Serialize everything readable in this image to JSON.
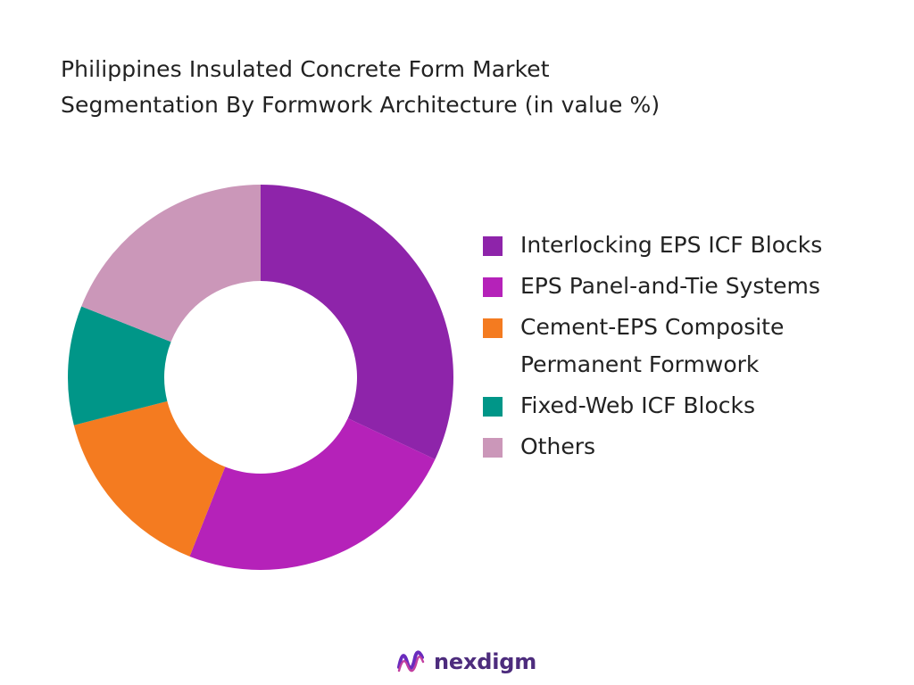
{
  "title": {
    "line1": "Philippines Insulated Concrete Form Market",
    "line2": "Segmentation By Formwork Architecture (in value %)"
  },
  "chart_data": {
    "type": "pie",
    "donut": true,
    "categories": [
      "Interlocking EPS ICF Blocks",
      "EPS Panel-and-Tie Systems",
      "Cement-EPS Composite Permanent Formwork",
      "Fixed-Web ICF Blocks",
      "Others"
    ],
    "legend_lines": [
      [
        "Interlocking EPS ICF Blocks"
      ],
      [
        "EPS Panel-and-Tie Systems"
      ],
      [
        "Cement-EPS Composite",
        "Permanent Formwork"
      ],
      [
        "Fixed-Web ICF Blocks"
      ],
      [
        "Others"
      ]
    ],
    "values": [
      32,
      24,
      15,
      10,
      19
    ],
    "colors": [
      "#8e24aa",
      "#b522b9",
      "#f47b20",
      "#009688",
      "#cb97b9"
    ],
    "legend_position": "right"
  },
  "brand": {
    "name": "nexdigm",
    "logo": "nexdigm-logo-icon"
  }
}
